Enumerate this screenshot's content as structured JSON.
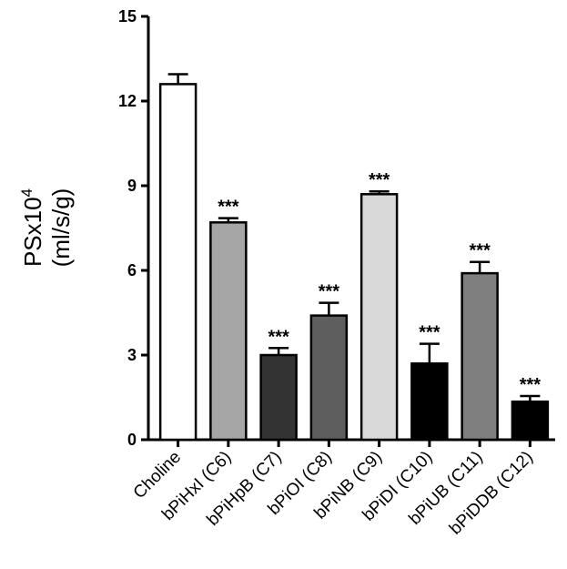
{
  "chart_data": {
    "type": "bar",
    "categories": [
      "Choline",
      "bPiHxI (C6)",
      "bPiHpB (C7)",
      "bPiOI (C8)",
      "bPiNB (C9)",
      "bPiDI (C10)",
      "bPiUB (C11)",
      "bPiDDB (C12)"
    ],
    "values": [
      12.6,
      7.7,
      3.0,
      4.4,
      8.7,
      2.7,
      5.9,
      1.35
    ],
    "errors": [
      0.35,
      0.15,
      0.25,
      0.45,
      0.1,
      0.7,
      0.4,
      0.2
    ],
    "significance": [
      "",
      "***",
      "***",
      "***",
      "***",
      "***",
      "***",
      "***"
    ],
    "bar_colors": [
      "#ffffff",
      "#a6a6a6",
      "#333333",
      "#5e5e5e",
      "#d9d9d9",
      "#000000",
      "#7f7f7f",
      "#000000"
    ],
    "ylabel_main": "PSx10",
    "ylabel_sup": "4",
    "ylabel_unit": "(ml/s/g)",
    "yticks": [
      "0",
      "3",
      "6",
      "9",
      "12",
      "15"
    ],
    "ylim": [
      0,
      15
    ],
    "grid": false,
    "legend": "none"
  }
}
